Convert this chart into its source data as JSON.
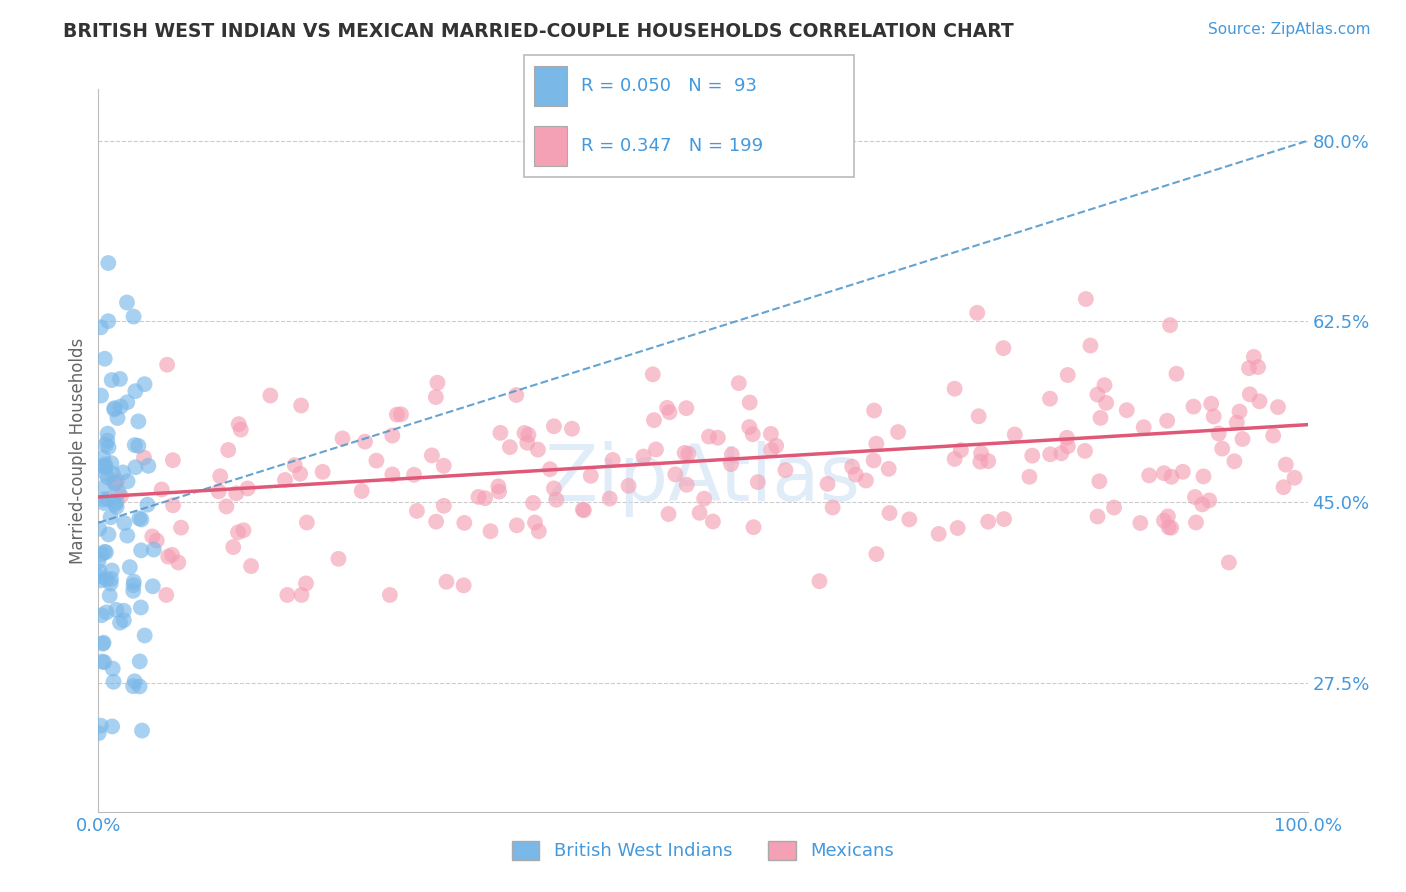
{
  "title": "BRITISH WEST INDIAN VS MEXICAN MARRIED-COUPLE HOUSEHOLDS CORRELATION CHART",
  "source_text": "Source: ZipAtlas.com",
  "ylabel": "Married-couple Households",
  "xlabel": "",
  "xlim": [
    0,
    100
  ],
  "ylim": [
    15,
    85
  ],
  "yticks": [
    27.5,
    45.0,
    62.5,
    80.0
  ],
  "xticks": [
    0,
    100
  ],
  "xticklabels": [
    "0.0%",
    "100.0%"
  ],
  "yticklabels": [
    "27.5%",
    "45.0%",
    "62.5%",
    "80.0%"
  ],
  "watermark": "ZipAtlas",
  "blue_color": "#7ab8e8",
  "pink_color": "#f4a0b5",
  "blue_line_color": "#5599cc",
  "pink_line_color": "#e05878",
  "title_color": "#333333",
  "axis_label_color": "#666666",
  "tick_color": "#4499dd",
  "legend_text_color": "#4499dd",
  "watermark_color": "#c8dff5",
  "background_color": "#ffffff",
  "grid_color": "#cccccc",
  "blue_line": {
    "x0": 0,
    "y0": 43.0,
    "x1": 100,
    "y1": 80.0
  },
  "pink_line": {
    "x0": 0,
    "y0": 45.5,
    "x1": 100,
    "y1": 52.5
  },
  "legend_blue_text": "R = 0.050  N =  93",
  "legend_pink_text": "R = 0.347  N = 199",
  "bottom_legend": [
    "British West Indians",
    "Mexicans"
  ]
}
